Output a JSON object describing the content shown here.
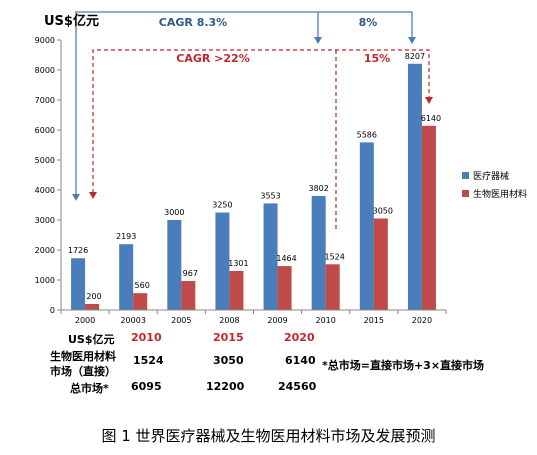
{
  "unit_label": "US$亿元",
  "chart_data": {
    "type": "bar",
    "categories": [
      "2000",
      "20003",
      "2005",
      "2008",
      "2009",
      "2010",
      "2015",
      "2020"
    ],
    "series": [
      {
        "name": "医疗器械",
        "color": "#4a7ebb",
        "values": [
          1726,
          2193,
          3000,
          3250,
          3553,
          3802,
          5586,
          8207
        ]
      },
      {
        "name": "生物医用材料",
        "color": "#be4b48",
        "values": [
          200,
          560,
          967,
          1301,
          1464,
          1524,
          3050,
          6140
        ]
      }
    ],
    "value_labels": {
      "s0": [
        "1726",
        "2193",
        "3000",
        "3250",
        "3553",
        "3802",
        "5586",
        "8207"
      ],
      "s1": [
        "200",
        "560",
        "967",
        "1301",
        "1464",
        "1524",
        "3050",
        "6140"
      ]
    },
    "ylim": [
      0,
      9000
    ],
    "yticks": [
      0,
      1000,
      2000,
      3000,
      4000,
      5000,
      6000,
      7000,
      8000,
      9000
    ],
    "grid": false,
    "legend_position": "right"
  },
  "annotations": {
    "cagr_total": "CAGR 8.3%",
    "growth_total_2015_2020": "8%",
    "cagr_biomaterial": "CAGR >22%",
    "growth_biomaterial_2015_2020": "15%"
  },
  "table": {
    "header_label": "US$亿元",
    "years": [
      "2010",
      "2015",
      "2020"
    ],
    "rows": [
      {
        "label": "生物医用材料\n市场（直接）",
        "values": [
          "1524",
          "3050",
          "6140"
        ]
      },
      {
        "label": "总市场*",
        "values": [
          "6095",
          "12200",
          "24560"
        ]
      }
    ],
    "note": "*总市场=直接市场+3×直接市场"
  },
  "caption": "图 1  世界医疗器械及生物医用材料市场及发展预测",
  "colors": {
    "blue_arrow": "#4a7ebb",
    "red_arrow": "#c0282a"
  }
}
